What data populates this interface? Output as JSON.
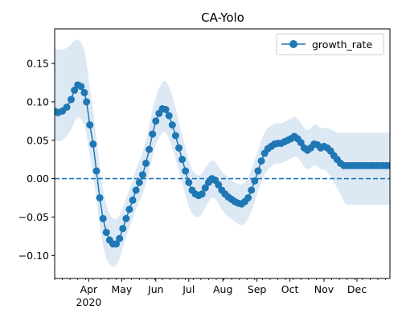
{
  "chart_data": {
    "type": "line",
    "title": "CA-Yolo",
    "xlabel": "",
    "ylabel": "",
    "legend": {
      "placement": "top-right",
      "entries": [
        "growth_rate"
      ]
    },
    "grid": false,
    "colors": {
      "series": "#1f77b4",
      "band": "#dce9f5",
      "zero_line": "#1f77b4"
    },
    "x_axis": {
      "range": [
        "2020-03-01",
        "2020-12-31"
      ],
      "month_ticks": [
        {
          "date": "2020-04-01",
          "label": "Apr"
        },
        {
          "date": "2020-05-01",
          "label": "May"
        },
        {
          "date": "2020-06-01",
          "label": "Jun"
        },
        {
          "date": "2020-07-01",
          "label": "Jul"
        },
        {
          "date": "2020-08-01",
          "label": "Aug"
        },
        {
          "date": "2020-09-01",
          "label": "Sep"
        },
        {
          "date": "2020-10-01",
          "label": "Oct"
        },
        {
          "date": "2020-11-01",
          "label": "Nov"
        },
        {
          "date": "2020-12-01",
          "label": "Dec"
        }
      ],
      "year_label": "2020"
    },
    "y_axis": {
      "range": [
        -0.13,
        0.195
      ],
      "ticks": [
        -0.1,
        -0.05,
        0.0,
        0.05,
        0.1,
        0.15
      ],
      "tick_labels": [
        "−0.10",
        "−0.05",
        "0.00",
        "0.05",
        "0.10",
        "0.15"
      ]
    },
    "reference_line": {
      "y": 0.0,
      "style": "dashed"
    },
    "series": [
      {
        "name": "growth_rate",
        "x": [
          "2020-03-01",
          "2020-03-04",
          "2020-03-08",
          "2020-03-12",
          "2020-03-16",
          "2020-03-19",
          "2020-03-22",
          "2020-03-25",
          "2020-03-28",
          "2020-03-30",
          "2020-04-02",
          "2020-04-05",
          "2020-04-08",
          "2020-04-11",
          "2020-04-14",
          "2020-04-17",
          "2020-04-20",
          "2020-04-23",
          "2020-04-26",
          "2020-04-29",
          "2020-05-02",
          "2020-05-05",
          "2020-05-08",
          "2020-05-11",
          "2020-05-14",
          "2020-05-17",
          "2020-05-20",
          "2020-05-23",
          "2020-05-26",
          "2020-05-29",
          "2020-06-01",
          "2020-06-04",
          "2020-06-07",
          "2020-06-10",
          "2020-06-13",
          "2020-06-16",
          "2020-06-19",
          "2020-06-22",
          "2020-06-25",
          "2020-06-28",
          "2020-07-01",
          "2020-07-04",
          "2020-07-07",
          "2020-07-10",
          "2020-07-13",
          "2020-07-16",
          "2020-07-19",
          "2020-07-22",
          "2020-07-25",
          "2020-07-28",
          "2020-07-31",
          "2020-08-03",
          "2020-08-06",
          "2020-08-09",
          "2020-08-12",
          "2020-08-15",
          "2020-08-18",
          "2020-08-21",
          "2020-08-24",
          "2020-08-27",
          "2020-08-30",
          "2020-09-02",
          "2020-09-05",
          "2020-09-08",
          "2020-09-11",
          "2020-09-14",
          "2020-09-17",
          "2020-09-20",
          "2020-09-23",
          "2020-09-26",
          "2020-09-29",
          "2020-10-02",
          "2020-10-05",
          "2020-10-08",
          "2020-10-11",
          "2020-10-14",
          "2020-10-17",
          "2020-10-20",
          "2020-10-23",
          "2020-10-26",
          "2020-10-29",
          "2020-11-01",
          "2020-11-04",
          "2020-11-07",
          "2020-11-10",
          "2020-11-13",
          "2020-11-16",
          "2020-11-19",
          "2020-11-22",
          "2020-11-25",
          "2020-11-28",
          "2020-12-01",
          "2020-12-04",
          "2020-12-07",
          "2020-12-10",
          "2020-12-13",
          "2020-12-16",
          "2020-12-19",
          "2020-12-22",
          "2020-12-25",
          "2020-12-28",
          "2020-12-31"
        ],
        "y": [
          0.088,
          0.086,
          0.088,
          0.093,
          0.103,
          0.115,
          0.122,
          0.12,
          0.112,
          0.1,
          0.07,
          0.045,
          0.01,
          -0.025,
          -0.052,
          -0.07,
          -0.08,
          -0.085,
          -0.085,
          -0.078,
          -0.065,
          -0.052,
          -0.04,
          -0.028,
          -0.015,
          -0.005,
          0.005,
          0.02,
          0.038,
          0.058,
          0.075,
          0.085,
          0.091,
          0.09,
          0.082,
          0.07,
          0.056,
          0.04,
          0.025,
          0.01,
          -0.005,
          -0.015,
          -0.02,
          -0.022,
          -0.02,
          -0.012,
          -0.005,
          0.0,
          -0.002,
          -0.008,
          -0.015,
          -0.02,
          -0.024,
          -0.027,
          -0.03,
          -0.032,
          -0.033,
          -0.03,
          -0.025,
          -0.015,
          -0.003,
          0.01,
          0.023,
          0.033,
          0.039,
          0.042,
          0.045,
          0.046,
          0.046,
          0.048,
          0.05,
          0.052,
          0.055,
          0.052,
          0.047,
          0.04,
          0.037,
          0.04,
          0.045,
          0.044,
          0.04,
          0.042,
          0.04,
          0.036,
          0.03,
          0.025,
          0.02,
          0.017,
          0.017,
          0.017,
          0.017,
          0.017,
          0.017,
          0.017,
          0.017,
          0.017,
          0.017,
          0.017,
          0.017,
          0.017,
          0.017,
          0.017
        ],
        "y_lower": [
          0.05,
          0.048,
          0.05,
          0.055,
          0.064,
          0.074,
          0.08,
          0.078,
          0.07,
          0.058,
          0.03,
          0.005,
          -0.028,
          -0.062,
          -0.088,
          -0.104,
          -0.112,
          -0.115,
          -0.113,
          -0.104,
          -0.09,
          -0.076,
          -0.064,
          -0.052,
          -0.04,
          -0.03,
          -0.02,
          -0.006,
          0.01,
          0.028,
          0.044,
          0.054,
          0.06,
          0.06,
          0.052,
          0.04,
          0.026,
          0.01,
          -0.006,
          -0.022,
          -0.036,
          -0.046,
          -0.05,
          -0.05,
          -0.046,
          -0.038,
          -0.03,
          -0.024,
          -0.026,
          -0.032,
          -0.04,
          -0.046,
          -0.05,
          -0.053,
          -0.056,
          -0.059,
          -0.061,
          -0.058,
          -0.052,
          -0.042,
          -0.03,
          -0.017,
          -0.004,
          0.006,
          0.012,
          0.016,
          0.019,
          0.02,
          0.02,
          0.022,
          0.024,
          0.026,
          0.029,
          0.027,
          0.022,
          0.015,
          0.012,
          0.014,
          0.018,
          0.016,
          0.012,
          0.012,
          0.009,
          0.003,
          -0.005,
          -0.012,
          -0.02,
          -0.03,
          -0.034,
          -0.034,
          -0.034,
          -0.034,
          -0.034,
          -0.034,
          -0.034,
          -0.034,
          -0.034,
          -0.034,
          -0.034,
          -0.034,
          -0.034,
          -0.034
        ],
        "y_upper": [
          0.17,
          0.168,
          0.168,
          0.17,
          0.175,
          0.18,
          0.181,
          0.178,
          0.168,
          0.152,
          0.118,
          0.09,
          0.052,
          0.014,
          -0.014,
          -0.034,
          -0.046,
          -0.052,
          -0.053,
          -0.048,
          -0.038,
          -0.026,
          -0.014,
          -0.002,
          0.012,
          0.022,
          0.034,
          0.05,
          0.068,
          0.09,
          0.106,
          0.118,
          0.126,
          0.128,
          0.12,
          0.108,
          0.092,
          0.074,
          0.056,
          0.04,
          0.024,
          0.012,
          0.006,
          0.004,
          0.006,
          0.014,
          0.02,
          0.024,
          0.022,
          0.016,
          0.01,
          0.005,
          0.001,
          -0.002,
          -0.005,
          -0.007,
          -0.008,
          -0.005,
          0.001,
          0.012,
          0.024,
          0.037,
          0.05,
          0.06,
          0.066,
          0.069,
          0.072,
          0.072,
          0.072,
          0.074,
          0.076,
          0.078,
          0.081,
          0.078,
          0.073,
          0.066,
          0.063,
          0.066,
          0.071,
          0.07,
          0.066,
          0.066,
          0.066,
          0.064,
          0.062,
          0.06,
          0.06,
          0.06,
          0.06,
          0.06,
          0.06,
          0.06,
          0.06,
          0.06,
          0.06,
          0.06,
          0.06,
          0.06,
          0.06,
          0.06,
          0.06,
          0.06
        ]
      }
    ]
  }
}
